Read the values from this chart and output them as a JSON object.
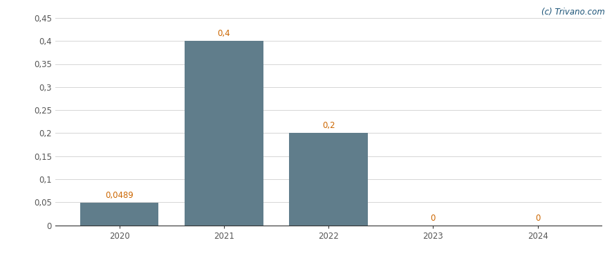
{
  "categories": [
    "2020",
    "2021",
    "2022",
    "2023",
    "2024"
  ],
  "values": [
    0.0489,
    0.4,
    0.2,
    0,
    0
  ],
  "bar_labels": [
    "0,0489",
    "0,4",
    "0,2",
    "0",
    "0"
  ],
  "bar_color": "#607d8b",
  "background_color": "#ffffff",
  "ylim": [
    0,
    0.45
  ],
  "yticks": [
    0,
    0.05,
    0.1,
    0.15,
    0.2,
    0.25,
    0.3,
    0.35,
    0.4,
    0.45
  ],
  "ytick_labels": [
    "0",
    "0,05",
    "0,1",
    "0,15",
    "0,2",
    "0,25",
    "0,3",
    "0,35",
    "0,4",
    "0,45"
  ],
  "watermark": "(c) Trivano.com",
  "watermark_color": "#1a5276",
  "label_color": "#cc6600",
  "label_fontsize": 8.5,
  "tick_fontsize": 8.5,
  "bar_width": 0.75,
  "grid_color": "#d5d5d5",
  "spine_color": "#333333",
  "tick_color": "#555555"
}
